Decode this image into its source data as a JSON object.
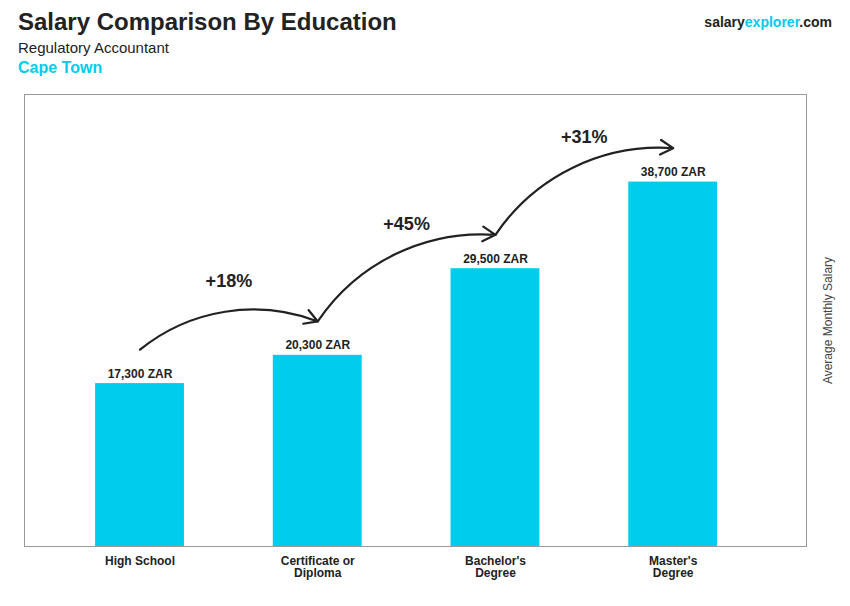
{
  "chart_data": {
    "type": "bar",
    "title": "Salary Comparison By Education",
    "subtitle": "Regulatory Accountant",
    "city": "Cape Town",
    "watermark": [
      "salary",
      "explorer",
      ".com"
    ],
    "ylabel": "Average Monthly Salary",
    "categories": [
      "High School",
      "Certificate or\nDiploma",
      "Bachelor's\nDegree",
      "Master's\nDegree"
    ],
    "values": [
      17300,
      20300,
      29500,
      38700
    ],
    "value_labels": [
      "17,300 ZAR",
      "20,300 ZAR",
      "29,500 ZAR",
      "38,700 ZAR"
    ],
    "data_labels": true,
    "annotations": [
      "+18%",
      "+45%",
      "+31%"
    ],
    "color": "#00ccee",
    "ylim": [
      0,
      48000
    ],
    "tick_labels": "x",
    "grid": false
  }
}
